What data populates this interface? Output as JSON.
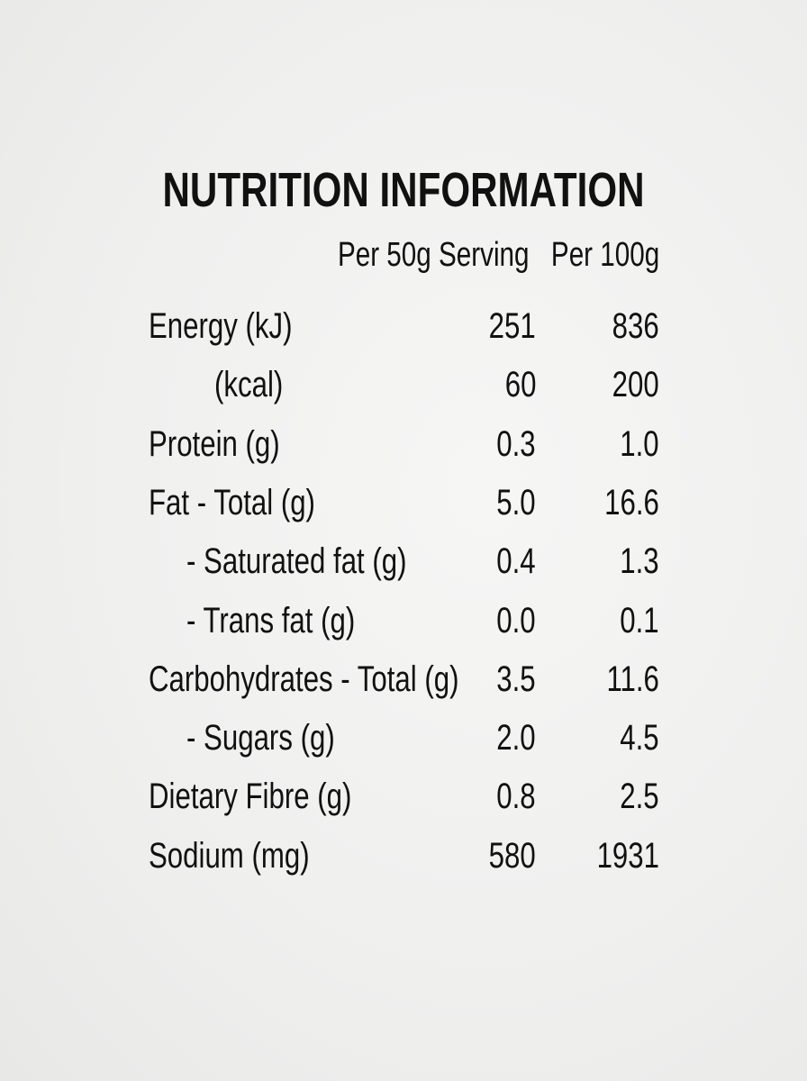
{
  "title": "NUTRITION INFORMATION",
  "table": {
    "columns": [
      "Per 50g Serving",
      "Per 100g"
    ],
    "rows": [
      [
        "Energy (kJ)",
        "251",
        "836"
      ],
      [
        "(kcal)",
        "60",
        "200"
      ],
      [
        "Protein (g)",
        "0.3",
        "1.0"
      ],
      [
        "Fat - Total (g)",
        "5.0",
        "16.6"
      ],
      [
        "- Saturated fat (g)",
        "0.4",
        "1.3"
      ],
      [
        "- Trans fat (g)",
        "0.0",
        "0.1"
      ],
      [
        "Carbohydrates - Total (g)",
        "3.5",
        "11.6"
      ],
      [
        "- Sugars (g)",
        "2.0",
        "4.5"
      ],
      [
        "Dietary Fibre (g)",
        "0.8",
        "2.5"
      ],
      [
        "Sodium (mg)",
        "580",
        "1931"
      ]
    ]
  }
}
